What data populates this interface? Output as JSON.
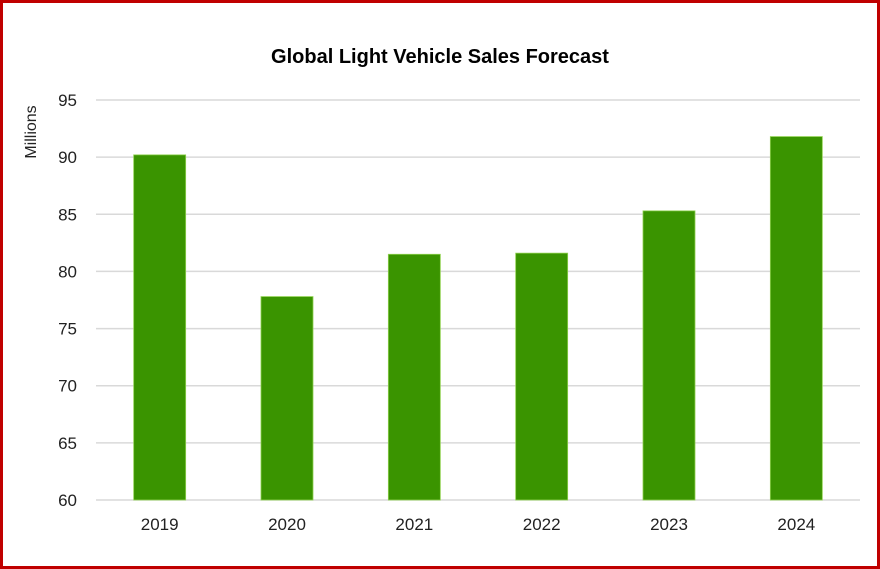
{
  "chart_data": {
    "type": "bar",
    "title": "Global Light Vehicle Sales Forecast",
    "xlabel": "",
    "ylabel": "Millions",
    "categories": [
      "2019",
      "2020",
      "2021",
      "2022",
      "2023",
      "2024"
    ],
    "values": [
      90.2,
      77.8,
      81.5,
      81.6,
      85.3,
      91.8
    ],
    "ylim": [
      60,
      95
    ],
    "yticks": [
      60,
      65,
      70,
      75,
      80,
      85,
      90,
      95
    ],
    "grid": true,
    "legend": "none",
    "bar_color": "#3a9400",
    "bar_edge_color": "#8fd14f",
    "grid_color": "#d9d9d9",
    "border_color": "#c00000"
  }
}
